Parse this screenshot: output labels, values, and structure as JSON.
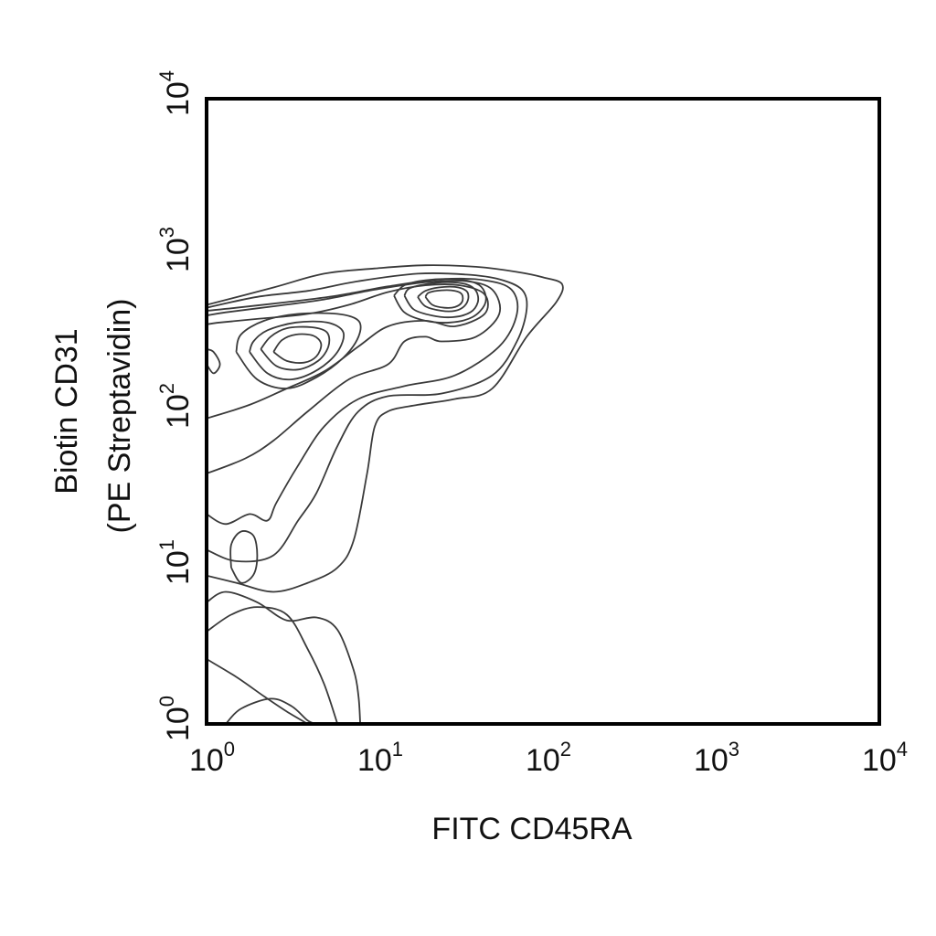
{
  "chart_data": {
    "type": "contour",
    "xlabel": "FITC CD45RA",
    "ylabel_line1": "Biotin CD31",
    "ylabel_line2": "(PE Streptavidin)",
    "xscale": "log",
    "yscale": "log",
    "xlim": [
      1,
      10000
    ],
    "ylim": [
      1,
      10000
    ],
    "x_ticks": [
      {
        "base": "10",
        "exp": "0",
        "value": 1
      },
      {
        "base": "10",
        "exp": "1",
        "value": 10
      },
      {
        "base": "10",
        "exp": "2",
        "value": 100
      },
      {
        "base": "10",
        "exp": "3",
        "value": 1000
      },
      {
        "base": "10",
        "exp": "4",
        "value": 10000
      }
    ],
    "y_ticks": [
      {
        "base": "10",
        "exp": "0",
        "value": 1
      },
      {
        "base": "10",
        "exp": "1",
        "value": 10
      },
      {
        "base": "10",
        "exp": "2",
        "value": 100
      },
      {
        "base": "10",
        "exp": "3",
        "value": 1000
      },
      {
        "base": "10",
        "exp": "4",
        "value": 10000
      }
    ],
    "grid": false,
    "legend": "none",
    "line_color": "#3a3a3a",
    "populations": [
      {
        "center_x": 3.5,
        "center_y": 250
      },
      {
        "center_x": 28,
        "center_y": 550
      }
    ],
    "contours": [
      [
        [
          1,
          2.6
        ],
        [
          1.5,
          2
        ],
        [
          2.2,
          1.5
        ],
        [
          3,
          1.2
        ],
        [
          4,
          1
        ]
      ],
      [
        [
          1.3,
          1
        ],
        [
          1.6,
          1.25
        ],
        [
          2.4,
          1.45
        ],
        [
          3.2,
          1.3
        ],
        [
          4,
          1.05
        ],
        [
          4.5,
          1
        ]
      ],
      [
        [
          1,
          3.9
        ],
        [
          1.4,
          5
        ],
        [
          2,
          5.6
        ],
        [
          3,
          5
        ],
        [
          4,
          3
        ],
        [
          5,
          1.8
        ],
        [
          6,
          1
        ]
      ],
      [
        [
          1,
          6
        ],
        [
          1.3,
          7
        ],
        [
          2,
          6
        ],
        [
          3,
          4.6
        ],
        [
          4.5,
          4.8
        ],
        [
          6,
          4
        ],
        [
          7.5,
          2.2
        ],
        [
          8,
          1.5
        ],
        [
          8.2,
          1
        ]
      ],
      [
        [
          1,
          8.9
        ],
        [
          1.5,
          8
        ],
        [
          2.5,
          7
        ],
        [
          4,
          8
        ],
        [
          6,
          10
        ],
        [
          7.5,
          15
        ],
        [
          9,
          40
        ],
        [
          10,
          80
        ],
        [
          12,
          100
        ],
        [
          18,
          110
        ],
        [
          30,
          120
        ],
        [
          50,
          140
        ],
        [
          80,
          300
        ],
        [
          120,
          500
        ],
        [
          130,
          650
        ],
        [
          100,
          720
        ],
        [
          70,
          780
        ],
        [
          40,
          840
        ],
        [
          20,
          860
        ],
        [
          10,
          820
        ],
        [
          5,
          760
        ],
        [
          2.5,
          620
        ],
        [
          1,
          480
        ]
      ],
      [
        [
          1,
          13
        ],
        [
          1.5,
          11
        ],
        [
          2.5,
          12
        ],
        [
          3.5,
          20
        ],
        [
          4.5,
          30
        ],
        [
          6,
          60
        ],
        [
          8,
          100
        ],
        [
          12,
          125
        ],
        [
          25,
          130
        ],
        [
          50,
          170
        ],
        [
          70,
          280
        ],
        [
          80,
          450
        ],
        [
          75,
          600
        ],
        [
          55,
          700
        ],
        [
          35,
          750
        ],
        [
          18,
          760
        ],
        [
          8,
          680
        ],
        [
          4,
          590
        ],
        [
          2,
          540
        ],
        [
          1,
          460
        ]
      ],
      [
        [
          1,
          22
        ],
        [
          1.3,
          19
        ],
        [
          1.8,
          22
        ],
        [
          2.3,
          20
        ],
        [
          2.6,
          26
        ],
        [
          3.5,
          45
        ],
        [
          5,
          80
        ],
        [
          8,
          120
        ],
        [
          15,
          145
        ],
        [
          30,
          170
        ],
        [
          55,
          260
        ],
        [
          70,
          420
        ],
        [
          65,
          600
        ],
        [
          45,
          690
        ],
        [
          25,
          700
        ],
        [
          12,
          630
        ],
        [
          6,
          550
        ],
        [
          3,
          500
        ],
        [
          1.5,
          460
        ],
        [
          1,
          440
        ]
      ],
      [
        [
          1,
          40
        ],
        [
          1.7,
          50
        ],
        [
          2.5,
          65
        ],
        [
          4,
          100
        ],
        [
          7,
          160
        ],
        [
          12,
          200
        ],
        [
          15,
          280
        ],
        [
          20,
          300
        ],
        [
          25,
          280
        ],
        [
          40,
          300
        ],
        [
          55,
          420
        ],
        [
          50,
          600
        ],
        [
          35,
          680
        ],
        [
          20,
          670
        ],
        [
          10,
          600
        ],
        [
          5,
          520
        ],
        [
          2.5,
          470
        ],
        [
          1.3,
          430
        ],
        [
          1,
          410
        ]
      ],
      [
        [
          1,
          90
        ],
        [
          1.8,
          110
        ],
        [
          3,
          140
        ],
        [
          5,
          180
        ],
        [
          8,
          260
        ],
        [
          12,
          350
        ],
        [
          20,
          380
        ],
        [
          30,
          350
        ],
        [
          45,
          420
        ],
        [
          45,
          560
        ],
        [
          32,
          640
        ],
        [
          20,
          640
        ],
        [
          12,
          580
        ],
        [
          7,
          480
        ],
        [
          4,
          420
        ],
        [
          2,
          390
        ],
        [
          1.2,
          370
        ],
        [
          1,
          360
        ]
      ],
      [
        [
          1.5,
          240
        ],
        [
          2,
          160
        ],
        [
          3,
          140
        ],
        [
          4.5,
          165
        ],
        [
          6.5,
          220
        ],
        [
          8,
          300
        ],
        [
          8,
          380
        ],
        [
          6,
          420
        ],
        [
          3.5,
          420
        ],
        [
          2.2,
          380
        ],
        [
          1.6,
          310
        ],
        [
          1.5,
          240
        ]
      ],
      [
        [
          1.8,
          240
        ],
        [
          2.3,
          175
        ],
        [
          3.2,
          160
        ],
        [
          4.6,
          185
        ],
        [
          6,
          240
        ],
        [
          6.5,
          320
        ],
        [
          5.2,
          370
        ],
        [
          3.4,
          370
        ],
        [
          2.3,
          330
        ],
        [
          1.9,
          280
        ],
        [
          1.8,
          240
        ]
      ],
      [
        [
          2.1,
          250
        ],
        [
          2.6,
          195
        ],
        [
          3.5,
          185
        ],
        [
          4.6,
          210
        ],
        [
          5.3,
          260
        ],
        [
          5.2,
          320
        ],
        [
          4.2,
          345
        ],
        [
          3,
          340
        ],
        [
          2.4,
          300
        ],
        [
          2.1,
          250
        ]
      ],
      [
        [
          2.5,
          240
        ],
        [
          3,
          210
        ],
        [
          3.8,
          205
        ],
        [
          4.5,
          225
        ],
        [
          4.8,
          270
        ],
        [
          4.3,
          305
        ],
        [
          3.4,
          310
        ],
        [
          2.8,
          285
        ],
        [
          2.5,
          240
        ]
      ],
      [
        [
          13,
          550
        ],
        [
          15,
          430
        ],
        [
          20,
          380
        ],
        [
          28,
          370
        ],
        [
          38,
          400
        ],
        [
          45,
          480
        ],
        [
          45,
          580
        ],
        [
          40,
          660
        ],
        [
          30,
          700
        ],
        [
          20,
          690
        ],
        [
          15,
          640
        ],
        [
          13,
          550
        ]
      ],
      [
        [
          15,
          550
        ],
        [
          17,
          450
        ],
        [
          22,
          410
        ],
        [
          29,
          400
        ],
        [
          37,
          430
        ],
        [
          41,
          500
        ],
        [
          40,
          590
        ],
        [
          35,
          650
        ],
        [
          27,
          670
        ],
        [
          20,
          650
        ],
        [
          16,
          610
        ],
        [
          15,
          550
        ]
      ],
      [
        [
          18,
          540
        ],
        [
          20,
          470
        ],
        [
          25,
          440
        ],
        [
          30,
          440
        ],
        [
          34,
          470
        ],
        [
          36,
          530
        ],
        [
          35,
          590
        ],
        [
          30,
          625
        ],
        [
          24,
          620
        ],
        [
          20,
          590
        ],
        [
          18,
          540
        ]
      ],
      [
        [
          20,
          540
        ],
        [
          22,
          480
        ],
        [
          26,
          460
        ],
        [
          30,
          465
        ],
        [
          33,
          500
        ],
        [
          33,
          560
        ],
        [
          30,
          590
        ],
        [
          25,
          595
        ],
        [
          21,
          575
        ],
        [
          20,
          540
        ]
      ],
      [
        [
          1.4,
          10
        ],
        [
          1.6,
          8
        ],
        [
          1.9,
          9
        ],
        [
          2,
          12
        ],
        [
          1.9,
          16
        ],
        [
          1.6,
          17
        ],
        [
          1.4,
          14
        ],
        [
          1.4,
          10
        ]
      ],
      [
        [
          1,
          200
        ],
        [
          1.1,
          175
        ],
        [
          1.2,
          200
        ],
        [
          1.1,
          240
        ],
        [
          1,
          250
        ]
      ]
    ]
  }
}
